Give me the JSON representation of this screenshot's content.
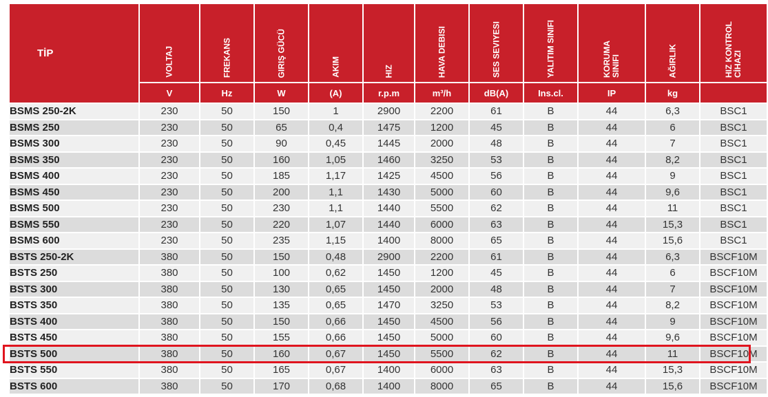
{
  "header": {
    "tip": "TİP",
    "columns": [
      {
        "label": "VOLTAJ",
        "unit": "V"
      },
      {
        "label": "FREKANS",
        "unit": "Hz"
      },
      {
        "label": "GIRIŞ GÜCÜ",
        "unit": "W"
      },
      {
        "label": "AKIM",
        "unit": "(A)"
      },
      {
        "label": "HIZ",
        "unit": "r.p.m"
      },
      {
        "label": "HAVA DEBISI",
        "unit": "m³/h"
      },
      {
        "label": "SES SEVIYESI",
        "unit": "dB(A)"
      },
      {
        "label": "YALITIM SINIFI",
        "unit": "Ins.cl."
      },
      {
        "label": "KORUMA\nSINIFI",
        "unit": "IP"
      },
      {
        "label": "AĞIRLIK",
        "unit": "kg"
      },
      {
        "label": "HIZ KONTROL\nCİHAZI",
        "unit": ""
      }
    ]
  },
  "rows": [
    [
      "BSMS 250-2K",
      "230",
      "50",
      "150",
      "1",
      "2900",
      "2200",
      "61",
      "B",
      "44",
      "6,3",
      "BSC1"
    ],
    [
      "BSMS 250",
      "230",
      "50",
      "65",
      "0,4",
      "1475",
      "1200",
      "45",
      "B",
      "44",
      "6",
      "BSC1"
    ],
    [
      "BSMS 300",
      "230",
      "50",
      "90",
      "0,45",
      "1445",
      "2000",
      "48",
      "B",
      "44",
      "7",
      "BSC1"
    ],
    [
      "BSMS 350",
      "230",
      "50",
      "160",
      "1,05",
      "1460",
      "3250",
      "53",
      "B",
      "44",
      "8,2",
      "BSC1"
    ],
    [
      "BSMS 400",
      "230",
      "50",
      "185",
      "1,17",
      "1425",
      "4500",
      "56",
      "B",
      "44",
      "9",
      "BSC1"
    ],
    [
      "BSMS 450",
      "230",
      "50",
      "200",
      "1,1",
      "1430",
      "5000",
      "60",
      "B",
      "44",
      "9,6",
      "BSC1"
    ],
    [
      "BSMS 500",
      "230",
      "50",
      "230",
      "1,1",
      "1440",
      "5500",
      "62",
      "B",
      "44",
      "11",
      "BSC1"
    ],
    [
      "BSMS 550",
      "230",
      "50",
      "220",
      "1,07",
      "1440",
      "6000",
      "63",
      "B",
      "44",
      "15,3",
      "BSC1"
    ],
    [
      "BSMS 600",
      "230",
      "50",
      "235",
      "1,15",
      "1400",
      "8000",
      "65",
      "B",
      "44",
      "15,6",
      "BSC1"
    ],
    [
      "BSTS 250-2K",
      "380",
      "50",
      "150",
      "0,48",
      "2900",
      "2200",
      "61",
      "B",
      "44",
      "6,3",
      "BSCF10M"
    ],
    [
      "BSTS 250",
      "380",
      "50",
      "100",
      "0,62",
      "1450",
      "1200",
      "45",
      "B",
      "44",
      "6",
      "BSCF10M"
    ],
    [
      "BSTS 300",
      "380",
      "50",
      "130",
      "0,65",
      "1450",
      "2000",
      "48",
      "B",
      "44",
      "7",
      "BSCF10M"
    ],
    [
      "BSTS 350",
      "380",
      "50",
      "135",
      "0,65",
      "1470",
      "3250",
      "53",
      "B",
      "44",
      "8,2",
      "BSCF10M"
    ],
    [
      "BSTS 400",
      "380",
      "50",
      "150",
      "0,66",
      "1450",
      "4500",
      "56",
      "B",
      "44",
      "9",
      "BSCF10M"
    ],
    [
      "BSTS 450",
      "380",
      "50",
      "155",
      "0,66",
      "1450",
      "5000",
      "60",
      "B",
      "44",
      "9,6",
      "BSCF10M"
    ],
    [
      "BSTS 500",
      "380",
      "50",
      "160",
      "0,67",
      "1450",
      "5500",
      "62",
      "B",
      "44",
      "11",
      "BSCF10M"
    ],
    [
      "BSTS 550",
      "380",
      "50",
      "165",
      "0,67",
      "1400",
      "6000",
      "63",
      "B",
      "44",
      "15,3",
      "BSCF10M"
    ],
    [
      "BSTS 600",
      "380",
      "50",
      "170",
      "0,68",
      "1400",
      "8000",
      "65",
      "B",
      "44",
      "15,6",
      "BSCF10M"
    ]
  ],
  "highlighted_row": "BSTS 500",
  "colors": {
    "header": "#c8202a",
    "row_light": "#f0f0f0",
    "row_dark": "#dcdcdc",
    "highlight": "#e0141e"
  }
}
